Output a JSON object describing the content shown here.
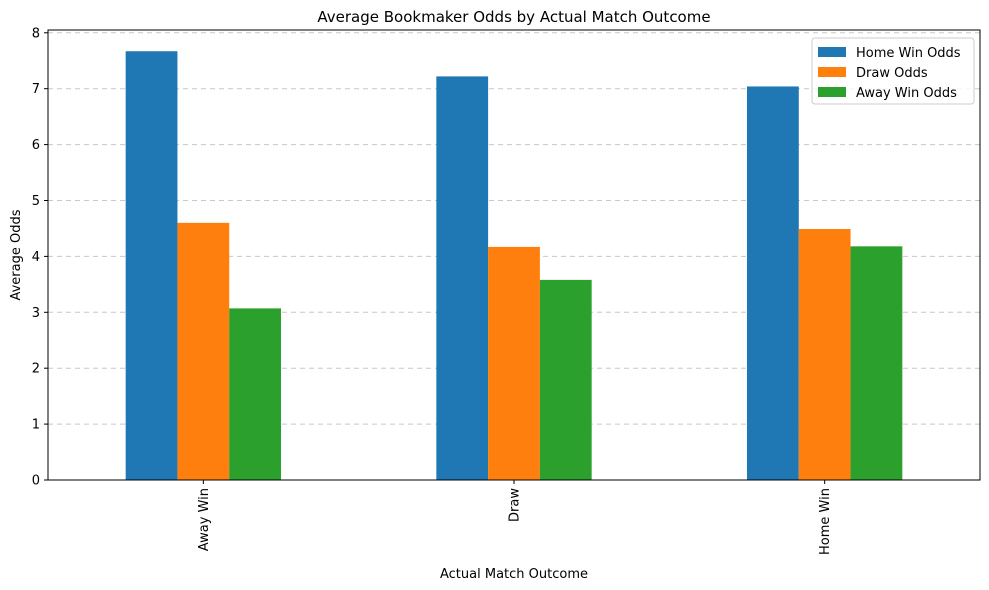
{
  "chart_data": {
    "type": "bar",
    "title": "Average Bookmaker Odds by Actual Match Outcome",
    "xlabel": "Actual Match Outcome",
    "ylabel": "Average Odds",
    "categories": [
      "Away Win",
      "Draw",
      "Home Win"
    ],
    "series": [
      {
        "name": "Home Win Odds",
        "color": "#1f77b4",
        "values": [
          7.67,
          7.22,
          7.04
        ]
      },
      {
        "name": "Draw Odds",
        "color": "#ff7f0e",
        "values": [
          4.6,
          4.17,
          4.49
        ]
      },
      {
        "name": "Away Win Odds",
        "color": "#2ca02c",
        "values": [
          3.07,
          3.58,
          4.18
        ]
      }
    ],
    "ylim": [
      0,
      8.05
    ],
    "yticks": [
      0,
      1,
      2,
      3,
      4,
      5,
      6,
      7,
      8
    ],
    "grid": "y-dashed",
    "legend_position": "top-right"
  }
}
